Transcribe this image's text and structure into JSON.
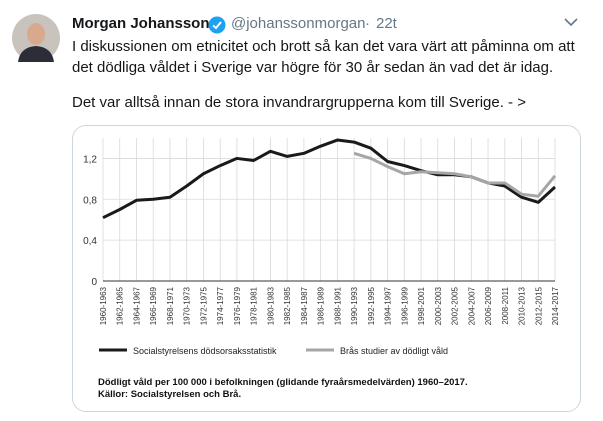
{
  "tweet": {
    "name": "Morgan Johansson",
    "handle": "@johanssonmorgan",
    "time": "22t",
    "text_lines": [
      "I diskussionen om etnicitet och brott så kan det vara värt att påminna om att",
      "det dödliga våldet i Sverige var högre för 30 år sedan än vad det är idag.",
      "Det var alltså innan de stora invandrargrupperna kom till Sverige. - >"
    ]
  },
  "chart_data": {
    "type": "line",
    "categories": [
      "1960-1963",
      "1962-1965",
      "1964-1967",
      "1966-1969",
      "1968-1971",
      "1970-1973",
      "1972-1975",
      "1974-1977",
      "1976-1979",
      "1978-1981",
      "1980-1983",
      "1982-1985",
      "1984-1987",
      "1986-1989",
      "1988-1991",
      "1990-1993",
      "1992-1995",
      "1994-1997",
      "1996-1999",
      "1998-2001",
      "2000-2003",
      "2002-2005",
      "2004-2007",
      "2006-2009",
      "2008-2011",
      "2010-2013",
      "2012-2015",
      "2014-2017"
    ],
    "series": [
      {
        "name": "Socialstyrelsens dödsorsaksstatistik",
        "color": "#1a1a1a",
        "values": [
          0.62,
          0.7,
          0.79,
          0.8,
          0.82,
          0.93,
          1.05,
          1.13,
          1.2,
          1.18,
          1.27,
          1.22,
          1.25,
          1.32,
          1.38,
          1.36,
          1.3,
          1.17,
          1.13,
          1.08,
          1.04,
          1.04,
          1.02,
          0.96,
          0.93,
          0.82,
          0.77,
          0.92
        ]
      },
      {
        "name": "Brås studier av dödligt våld",
        "color": "#a6a6a6",
        "values": [
          null,
          null,
          null,
          null,
          null,
          null,
          null,
          null,
          null,
          null,
          null,
          null,
          null,
          null,
          null,
          1.25,
          1.2,
          1.12,
          1.05,
          1.07,
          1.06,
          1.05,
          1.02,
          0.96,
          0.96,
          0.85,
          0.83,
          1.03
        ]
      }
    ],
    "ylim": [
      0,
      1.4
    ],
    "yticks": [
      0,
      {
        "value": 0.4,
        "label": "0,4"
      },
      {
        "value": 0.8,
        "label": "0,8"
      },
      {
        "value": 1.2,
        "label": "1,2"
      }
    ],
    "grid": true,
    "caption": [
      "Dödligt våld per 100 000 i befolkningen (glidande fyraårsmedelvärden) 1960–2017.",
      "Källor: Socialstyrelsen och Brå."
    ]
  }
}
